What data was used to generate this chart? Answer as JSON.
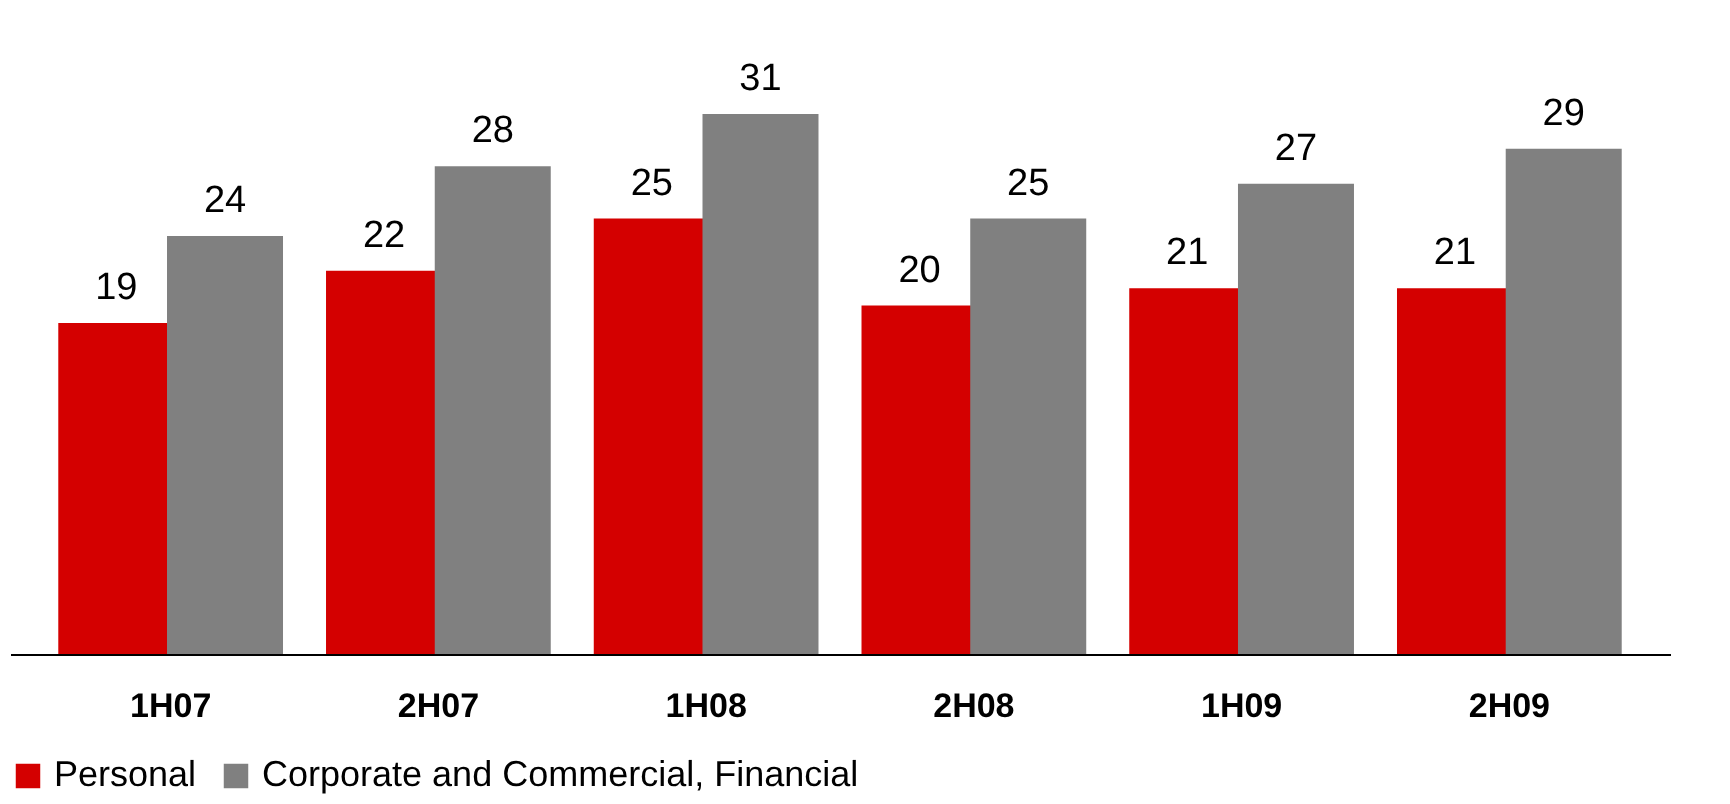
{
  "chart_data": {
    "type": "bar",
    "categories": [
      "1H07",
      "2H07",
      "1H08",
      "2H08",
      "1H09",
      "2H09"
    ],
    "series": [
      {
        "name": "Personal",
        "color": "#d40000",
        "values": [
          19,
          22,
          25,
          20,
          21,
          21
        ]
      },
      {
        "name": "Corporate and Commercial, Financial",
        "color": "#808080",
        "values": [
          24,
          28,
          31,
          25,
          27,
          29
        ]
      }
    ],
    "data_labels": true,
    "legend": "bottom",
    "grid": false
  }
}
